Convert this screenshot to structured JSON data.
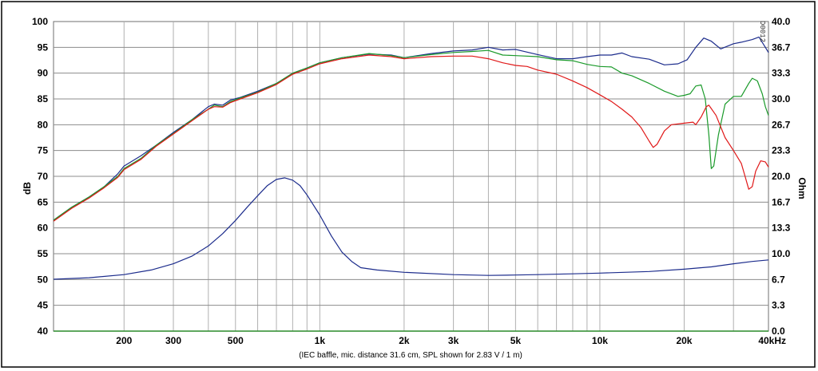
{
  "chart_data": {
    "type": "line",
    "caption": "(IEC baffle, mic. distance 31.6 cm, SPL shown for 2.83 V / 1 m)",
    "stamp": "D0012",
    "xscale": "log",
    "xlim": [
      112,
      40000
    ],
    "x_tick_labels": [
      {
        "x": 200,
        "label": "200"
      },
      {
        "x": 300,
        "label": "300"
      },
      {
        "x": 500,
        "label": "500"
      },
      {
        "x": 1000,
        "label": "1k"
      },
      {
        "x": 2000,
        "label": "2k"
      },
      {
        "x": 3000,
        "label": "3k"
      },
      {
        "x": 5000,
        "label": "5k"
      },
      {
        "x": 10000,
        "label": "10k"
      },
      {
        "x": 20000,
        "label": "20k"
      },
      {
        "x": 40000,
        "label": "40kHz"
      }
    ],
    "grid_x": [
      200,
      300,
      400,
      500,
      600,
      700,
      800,
      900,
      1000,
      2000,
      3000,
      4000,
      5000,
      6000,
      7000,
      8000,
      9000,
      10000,
      20000,
      30000
    ],
    "grid_y": [
      45,
      50,
      55,
      60,
      65,
      70,
      75,
      80,
      85,
      90,
      95
    ],
    "y_left": {
      "label": "dB",
      "lim": [
        40,
        100
      ],
      "ticks": [
        "40",
        "45",
        "50",
        "55",
        "60",
        "65",
        "70",
        "75",
        "80",
        "85",
        "90",
        "95",
        "100"
      ]
    },
    "y_right": {
      "label": "Ohm",
      "lim": [
        0,
        40
      ],
      "ticks": [
        "0.0",
        "3.3",
        "6.7",
        "10.0",
        "13.3",
        "16.7",
        "20.0",
        "23.3",
        "26.7",
        "30.0",
        "33.3",
        "36.7",
        "40.0"
      ]
    },
    "colors": {
      "grid": "#8c8c8c",
      "vgrid": "#b0b0b0",
      "axis": "#2a8a2a",
      "blue": "#1c2c8c",
      "green": "#1a9a2a",
      "red": "#e01818"
    },
    "series": [
      {
        "key": "blue",
        "color": "#1c2c8c",
        "axis": "left",
        "points": [
          [
            112,
            61.5
          ],
          [
            130,
            64
          ],
          [
            150,
            66
          ],
          [
            170,
            68
          ],
          [
            190,
            70.5
          ],
          [
            200,
            72
          ],
          [
            230,
            74
          ],
          [
            260,
            76
          ],
          [
            300,
            78.5
          ],
          [
            350,
            81
          ],
          [
            400,
            83.5
          ],
          [
            420,
            84
          ],
          [
            450,
            83.8
          ],
          [
            480,
            84.8
          ],
          [
            520,
            85.3
          ],
          [
            600,
            86.5
          ],
          [
            700,
            88
          ],
          [
            800,
            90
          ],
          [
            900,
            91
          ],
          [
            1000,
            92
          ],
          [
            1200,
            93
          ],
          [
            1500,
            93.7
          ],
          [
            1800,
            93.5
          ],
          [
            2000,
            93
          ],
          [
            2500,
            93.8
          ],
          [
            3000,
            94.3
          ],
          [
            3500,
            94.5
          ],
          [
            4000,
            95
          ],
          [
            4500,
            94.5
          ],
          [
            5000,
            94.6
          ],
          [
            6000,
            93.6
          ],
          [
            7000,
            92.8
          ],
          [
            8000,
            92.8
          ],
          [
            9000,
            93.2
          ],
          [
            10000,
            93.5
          ],
          [
            11000,
            93.5
          ],
          [
            12000,
            93.9
          ],
          [
            13000,
            93.2
          ],
          [
            15000,
            92.7
          ],
          [
            17000,
            91.6
          ],
          [
            19000,
            91.8
          ],
          [
            20500,
            92.6
          ],
          [
            22000,
            95
          ],
          [
            23500,
            96.8
          ],
          [
            25000,
            96.2
          ],
          [
            27000,
            94.7
          ],
          [
            30000,
            95.7
          ],
          [
            32000,
            96
          ],
          [
            35000,
            96.5
          ],
          [
            37000,
            97
          ],
          [
            39000,
            95
          ],
          [
            40000,
            94
          ]
        ]
      },
      {
        "key": "green",
        "color": "#1a9a2a",
        "axis": "left",
        "points": [
          [
            112,
            61.5
          ],
          [
            130,
            64
          ],
          [
            150,
            66
          ],
          [
            170,
            68
          ],
          [
            190,
            70
          ],
          [
            200,
            71.5
          ],
          [
            230,
            73.5
          ],
          [
            260,
            76
          ],
          [
            300,
            78.3
          ],
          [
            350,
            81
          ],
          [
            400,
            83
          ],
          [
            420,
            83.8
          ],
          [
            450,
            83.5
          ],
          [
            480,
            84.5
          ],
          [
            520,
            85.2
          ],
          [
            600,
            86.3
          ],
          [
            700,
            88
          ],
          [
            800,
            90
          ],
          [
            900,
            91
          ],
          [
            1000,
            92
          ],
          [
            1200,
            93
          ],
          [
            1500,
            93.8
          ],
          [
            1800,
            93.4
          ],
          [
            2000,
            93
          ],
          [
            2500,
            93.6
          ],
          [
            3000,
            94
          ],
          [
            3500,
            94.2
          ],
          [
            4000,
            94.4
          ],
          [
            4500,
            93.5
          ],
          [
            5000,
            93.4
          ],
          [
            6000,
            93.2
          ],
          [
            7000,
            92.6
          ],
          [
            8000,
            92.4
          ],
          [
            9000,
            91.7
          ],
          [
            10000,
            91.3
          ],
          [
            11000,
            91.2
          ],
          [
            12000,
            90
          ],
          [
            13000,
            89.5
          ],
          [
            15000,
            88
          ],
          [
            17000,
            86.5
          ],
          [
            19000,
            85.5
          ],
          [
            20000,
            85.7
          ],
          [
            21000,
            86
          ],
          [
            22000,
            87.5
          ],
          [
            23000,
            87.7
          ],
          [
            23800,
            85
          ],
          [
            24500,
            78
          ],
          [
            25000,
            71.5
          ],
          [
            25500,
            72
          ],
          [
            26500,
            78
          ],
          [
            28000,
            84
          ],
          [
            30000,
            85.5
          ],
          [
            32000,
            85.5
          ],
          [
            34000,
            88
          ],
          [
            35000,
            89
          ],
          [
            36500,
            88.5
          ],
          [
            38000,
            86
          ],
          [
            39000,
            83.5
          ],
          [
            40000,
            81.8
          ]
        ]
      },
      {
        "key": "red",
        "color": "#e01818",
        "axis": "left",
        "points": [
          [
            112,
            61.3
          ],
          [
            130,
            63.8
          ],
          [
            150,
            65.8
          ],
          [
            170,
            67.8
          ],
          [
            190,
            69.8
          ],
          [
            200,
            71.3
          ],
          [
            230,
            73.3
          ],
          [
            260,
            75.8
          ],
          [
            300,
            78.2
          ],
          [
            350,
            80.8
          ],
          [
            400,
            83
          ],
          [
            420,
            83.5
          ],
          [
            450,
            83.4
          ],
          [
            480,
            84.3
          ],
          [
            520,
            85
          ],
          [
            600,
            86.2
          ],
          [
            700,
            87.8
          ],
          [
            800,
            89.8
          ],
          [
            900,
            90.8
          ],
          [
            1000,
            91.8
          ],
          [
            1200,
            92.8
          ],
          [
            1500,
            93.5
          ],
          [
            1800,
            93.2
          ],
          [
            2000,
            92.8
          ],
          [
            2500,
            93.2
          ],
          [
            3000,
            93.3
          ],
          [
            3500,
            93.3
          ],
          [
            4000,
            92.8
          ],
          [
            4500,
            92
          ],
          [
            5000,
            91.5
          ],
          [
            5500,
            91.3
          ],
          [
            6000,
            90.6
          ],
          [
            7000,
            89.8
          ],
          [
            8000,
            88.5
          ],
          [
            9000,
            87.2
          ],
          [
            10000,
            85.8
          ],
          [
            11000,
            84.5
          ],
          [
            12000,
            83
          ],
          [
            13000,
            81.5
          ],
          [
            14000,
            79.5
          ],
          [
            15000,
            76.8
          ],
          [
            15500,
            75.6
          ],
          [
            16000,
            76.2
          ],
          [
            17000,
            78.8
          ],
          [
            18000,
            80
          ],
          [
            20000,
            80.3
          ],
          [
            21500,
            80.5
          ],
          [
            22000,
            80
          ],
          [
            23000,
            81.5
          ],
          [
            24000,
            83.5
          ],
          [
            24500,
            83.8
          ],
          [
            26000,
            81.8
          ],
          [
            28000,
            77.5
          ],
          [
            30000,
            75
          ],
          [
            32000,
            72.5
          ],
          [
            33000,
            70
          ],
          [
            34000,
            67.5
          ],
          [
            35000,
            68
          ],
          [
            36000,
            71
          ],
          [
            37500,
            73
          ],
          [
            39000,
            72.8
          ],
          [
            40000,
            71.8
          ]
        ]
      },
      {
        "key": "blue",
        "color": "#1c2c8c",
        "axis": "right",
        "name_hint": "impedance",
        "points": [
          [
            112,
            6.7
          ],
          [
            150,
            6.9
          ],
          [
            200,
            7.3
          ],
          [
            250,
            7.9
          ],
          [
            300,
            8.7
          ],
          [
            350,
            9.7
          ],
          [
            400,
            11
          ],
          [
            450,
            12.6
          ],
          [
            500,
            14.3
          ],
          [
            550,
            16
          ],
          [
            600,
            17.5
          ],
          [
            650,
            18.8
          ],
          [
            700,
            19.6
          ],
          [
            750,
            19.8
          ],
          [
            800,
            19.5
          ],
          [
            850,
            18.8
          ],
          [
            900,
            17.6
          ],
          [
            1000,
            15
          ],
          [
            1100,
            12.3
          ],
          [
            1200,
            10.2
          ],
          [
            1300,
            9
          ],
          [
            1400,
            8.2
          ],
          [
            1600,
            7.9
          ],
          [
            2000,
            7.6
          ],
          [
            3000,
            7.3
          ],
          [
            4000,
            7.2
          ],
          [
            5000,
            7.25
          ],
          [
            6000,
            7.3
          ],
          [
            8000,
            7.4
          ],
          [
            10000,
            7.5
          ],
          [
            15000,
            7.7
          ],
          [
            20000,
            8
          ],
          [
            25000,
            8.3
          ],
          [
            30000,
            8.7
          ],
          [
            35000,
            9
          ],
          [
            40000,
            9.2
          ]
        ]
      }
    ]
  }
}
